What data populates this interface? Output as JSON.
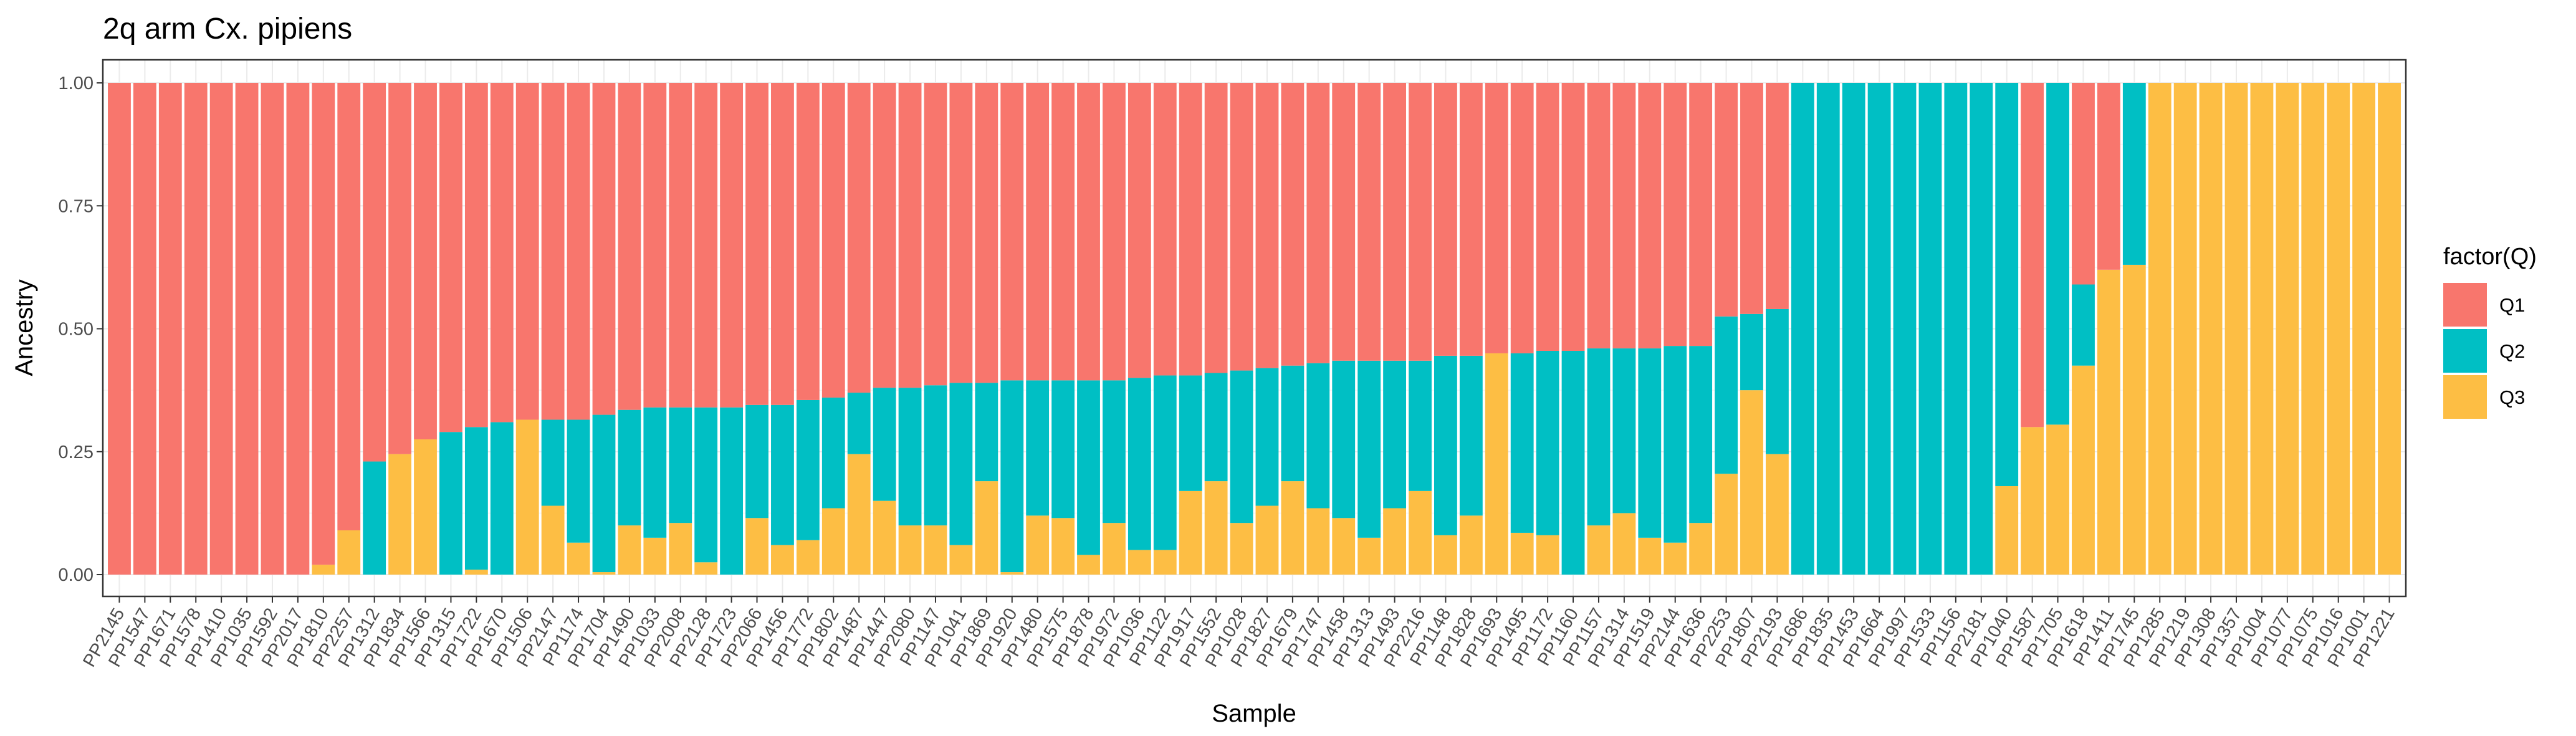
{
  "chart_data": {
    "type": "bar",
    "stacked": true,
    "title": "2q arm Cx. pipiens",
    "xlabel": "Sample",
    "ylabel": "Ancestry",
    "ylim": [
      0,
      1
    ],
    "yticks": [
      "0.00",
      "0.25",
      "0.50",
      "0.75",
      "1.00"
    ],
    "grid": true,
    "legend": {
      "title": "factor(Q)",
      "position": "right"
    },
    "colors": {
      "Q1": "#F8766D",
      "Q2": "#00BFC4",
      "Q3": "#FDBE44"
    },
    "categories": [
      "PP2145",
      "PP1547",
      "PP1671",
      "PP1578",
      "PP1410",
      "PP1035",
      "PP1592",
      "PP2017",
      "PP1810",
      "PP2257",
      "PP1312",
      "PP1834",
      "PP1566",
      "PP1315",
      "PP1722",
      "PP1670",
      "PP1506",
      "PP2147",
      "PP1174",
      "PP1704",
      "PP1490",
      "PP1033",
      "PP2008",
      "PP2128",
      "PP1723",
      "PP2066",
      "PP1456",
      "PP1772",
      "PP1802",
      "PP1487",
      "PP1447",
      "PP2080",
      "PP1147",
      "PP1041",
      "PP1869",
      "PP1920",
      "PP1480",
      "PP1575",
      "PP1878",
      "PP1972",
      "PP1036",
      "PP1122",
      "PP1917",
      "PP1552",
      "PP1028",
      "PP1827",
      "PP1679",
      "PP1747",
      "PP1458",
      "PP1313",
      "PP1493",
      "PP2216",
      "PP1148",
      "PP1828",
      "PP1693",
      "PP1495",
      "PP1172",
      "PP1160",
      "PP1157",
      "PP1314",
      "PP1519",
      "PP2144",
      "PP1636",
      "PP2253",
      "PP1807",
      "PP2193",
      "PP1686",
      "PP1835",
      "PP1453",
      "PP1664",
      "PP1997",
      "PP1533",
      "PP1156",
      "PP2181",
      "PP1040",
      "PP1587",
      "PP1705",
      "PP1618",
      "PP1411",
      "PP1745",
      "PP1285",
      "PP1219",
      "PP1308",
      "PP1357",
      "PP1004",
      "PP1077",
      "PP1075",
      "PP1016",
      "PP1001",
      "PP1221"
    ],
    "series": [
      {
        "name": "Q3",
        "values": [
          0,
          0,
          0,
          0,
          0,
          0,
          0,
          0,
          0.02,
          0.09,
          0,
          0.245,
          0.275,
          0,
          0.01,
          0,
          0.315,
          0.14,
          0.065,
          0.005,
          0.1,
          0.075,
          0.105,
          0.025,
          0,
          0.115,
          0.06,
          0.07,
          0.135,
          0.245,
          0.15,
          0.1,
          0.1,
          0.06,
          0.19,
          0.005,
          0.12,
          0.115,
          0.04,
          0.105,
          0.05,
          0.05,
          0.17,
          0.19,
          0.105,
          0.14,
          0.19,
          0.135,
          0.115,
          0.075,
          0.135,
          0.17,
          0.08,
          0.12,
          0.45,
          0.085,
          0.08,
          0,
          0.1,
          0.125,
          0.075,
          0.065,
          0.105,
          0.205,
          0.375,
          0.245,
          0,
          0,
          0,
          0,
          0,
          0,
          0,
          0,
          0.18,
          0.3,
          0.305,
          0.425,
          0.62,
          0.63,
          1,
          1,
          1,
          1,
          1,
          1,
          1,
          1,
          1,
          1
        ]
      },
      {
        "name": "Q2",
        "values": [
          0,
          0,
          0,
          0,
          0,
          0,
          0,
          0,
          0,
          0,
          0.23,
          0,
          0,
          0.29,
          0.29,
          0.31,
          0,
          0.175,
          0.25,
          0.32,
          0.235,
          0.265,
          0.235,
          0.315,
          0.34,
          0.23,
          0.285,
          0.285,
          0.225,
          0.125,
          0.23,
          0.28,
          0.285,
          0.33,
          0.2,
          0.39,
          0.275,
          0.28,
          0.355,
          0.29,
          0.35,
          0.355,
          0.235,
          0.22,
          0.31,
          0.28,
          0.235,
          0.295,
          0.32,
          0.36,
          0.3,
          0.265,
          0.365,
          0.325,
          0,
          0.365,
          0.375,
          0.455,
          0.36,
          0.335,
          0.385,
          0.4,
          0.36,
          0.32,
          0.155,
          0.295,
          1,
          1,
          1,
          1,
          1,
          1,
          1,
          1,
          0.82,
          0,
          0.695,
          0.165,
          0,
          0.37,
          0,
          0,
          0,
          0,
          0,
          0,
          0,
          0,
          0,
          0
        ]
      },
      {
        "name": "Q1",
        "values": [
          1,
          1,
          1,
          1,
          1,
          1,
          1,
          1,
          0.98,
          0.91,
          0.77,
          0.755,
          0.725,
          0.71,
          0.7,
          0.69,
          0.685,
          0.685,
          0.685,
          0.675,
          0.665,
          0.66,
          0.66,
          0.66,
          0.66,
          0.655,
          0.655,
          0.645,
          0.64,
          0.63,
          0.62,
          0.62,
          0.615,
          0.61,
          0.61,
          0.605,
          0.605,
          0.605,
          0.605,
          0.605,
          0.6,
          0.595,
          0.595,
          0.59,
          0.585,
          0.58,
          0.575,
          0.57,
          0.565,
          0.565,
          0.565,
          0.565,
          0.555,
          0.555,
          0.55,
          0.55,
          0.545,
          0.545,
          0.54,
          0.54,
          0.54,
          0.535,
          0.535,
          0.475,
          0.47,
          0.46,
          0,
          0,
          0,
          0,
          0,
          0,
          0,
          0,
          0,
          0.7,
          0,
          0.41,
          0.38,
          0,
          0,
          0,
          0,
          0,
          0,
          0,
          0,
          0,
          0,
          0
        ]
      }
    ]
  }
}
